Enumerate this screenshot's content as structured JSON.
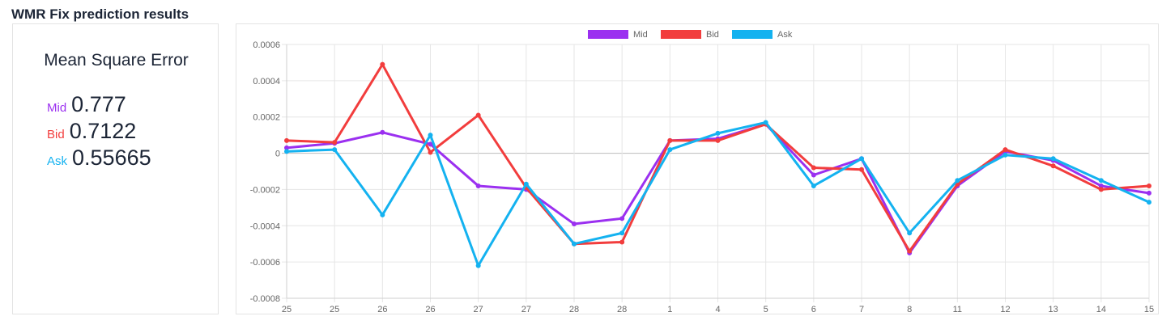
{
  "page_title": "WMR Fix prediction results",
  "mse": {
    "heading": "Mean Square Error",
    "rows": [
      {
        "label": "Mid",
        "value": "0.777",
        "color": "#9b30f0"
      },
      {
        "label": "Bid",
        "value": "0.7122",
        "color": "#f23d3d"
      },
      {
        "label": "Ask",
        "value": "0.55665",
        "color": "#14b2f0"
      }
    ]
  },
  "chart_data": {
    "type": "line",
    "categories": [
      "25",
      "25",
      "26",
      "26",
      "27",
      "27",
      "28",
      "28",
      "1",
      "4",
      "5",
      "6",
      "7",
      "8",
      "11",
      "12",
      "13",
      "14",
      "15"
    ],
    "ylim": [
      -0.0008,
      0.0006
    ],
    "yticks": [
      0.0006,
      0.0004,
      0.0002,
      0,
      -0.0002,
      -0.0004,
      -0.0006,
      -0.0008
    ],
    "ytick_labels": [
      "0.0006",
      "0.0004",
      "0.0002",
      "0",
      "-0.0002",
      "-0.0004",
      "-0.0006",
      "-0.0008"
    ],
    "grid": true,
    "legend_position": "top-center",
    "series": [
      {
        "name": "Mid",
        "color": "#9b30f0",
        "values": [
          3e-05,
          5.5e-05,
          0.000115,
          5e-05,
          -0.00018,
          -0.0002,
          -0.00039,
          -0.00036,
          7e-05,
          8e-05,
          0.00016,
          -0.00012,
          -3e-05,
          -0.00055,
          -0.00018,
          1e-05,
          -4e-05,
          -0.00018,
          -0.00022
        ]
      },
      {
        "name": "Bid",
        "color": "#f23d3d",
        "values": [
          7e-05,
          6e-05,
          0.00049,
          5e-06,
          0.00021,
          -0.00019,
          -0.0005,
          -0.00049,
          7e-05,
          7e-05,
          0.00016,
          -8e-05,
          -9e-05,
          -0.00054,
          -0.00017,
          2e-05,
          -7e-05,
          -0.0002,
          -0.00018
        ]
      },
      {
        "name": "Ask",
        "color": "#14b2f0",
        "values": [
          1e-05,
          2e-05,
          -0.00034,
          0.0001,
          -0.00062,
          -0.00017,
          -0.0005,
          -0.00044,
          2e-05,
          0.00011,
          0.00017,
          -0.00018,
          -3e-05,
          -0.00044,
          -0.00015,
          -1e-05,
          -3e-05,
          -0.00015,
          -0.00027
        ]
      }
    ]
  }
}
